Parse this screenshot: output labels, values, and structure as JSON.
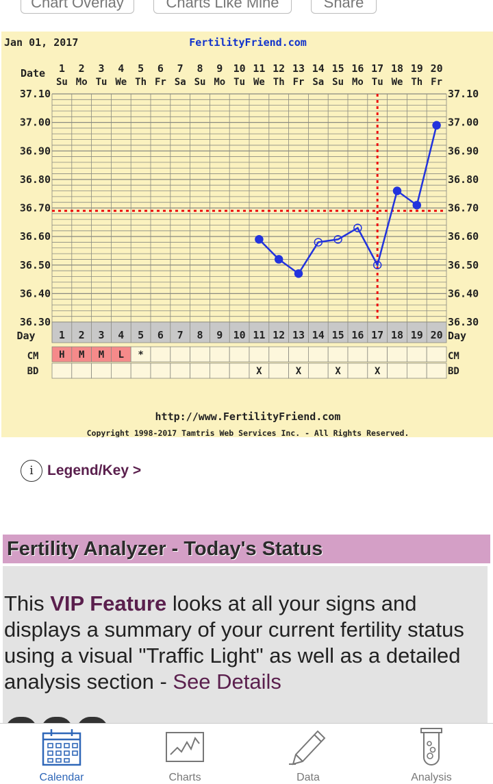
{
  "top_buttons": [
    "Chart Overlay",
    "Charts Like Mine",
    "Share"
  ],
  "chart": {
    "date_label": "Jan 01, 2017",
    "site_label": "FertilityFriend.com",
    "date_row_label": "Date",
    "day_row_label": "Day",
    "cm_label": "CM",
    "bd_label": "BD",
    "footer_url": "http://www.FertilityFriend.com",
    "copyright": "Copyright 1998-2017 Tamtris Web Services Inc. - All Rights Reserved."
  },
  "chart_data": {
    "type": "line",
    "x": [
      1,
      2,
      3,
      4,
      5,
      6,
      7,
      8,
      9,
      10,
      11,
      12,
      13,
      14,
      15,
      16,
      17,
      18,
      19,
      20
    ],
    "weekdays": [
      "Su",
      "Mo",
      "Tu",
      "We",
      "Th",
      "Fr",
      "Sa",
      "Su",
      "Mo",
      "Tu",
      "We",
      "Th",
      "Fr",
      "Sa",
      "Su",
      "Mo",
      "Tu",
      "We",
      "Th",
      "Fr"
    ],
    "ylim": [
      36.3,
      37.1
    ],
    "yticks": [
      "36.30",
      "36.40",
      "36.50",
      "36.60",
      "36.70",
      "36.80",
      "36.90",
      "37.00",
      "37.10"
    ],
    "series": [
      {
        "values": [
          null,
          null,
          null,
          null,
          null,
          null,
          null,
          null,
          null,
          null,
          36.59,
          36.52,
          36.47,
          36.58,
          36.59,
          36.63,
          36.5,
          36.76,
          36.71,
          36.99
        ],
        "open_points": [
          14,
          15,
          16,
          17
        ]
      }
    ],
    "coverline": 36.69,
    "ovulation_day": 17,
    "cm": [
      "H",
      "M",
      "M",
      "L",
      "*",
      "",
      "",
      "",
      "",
      "",
      "",
      "",
      "",
      "",
      "",
      "",
      "",
      "",
      "",
      ""
    ],
    "bd": [
      "",
      "",
      "",
      "",
      "",
      "",
      "",
      "",
      "",
      "",
      "X",
      "",
      "X",
      "",
      "X",
      "",
      "X",
      "",
      "",
      ""
    ],
    "colors": {
      "background": "#fbf2bf",
      "line": "#2233dd",
      "coverline": "#ee1111",
      "cm_fill": "#f58a8a",
      "day_strip": "#c8c8c8"
    }
  },
  "legend": {
    "icon": "i",
    "label": "Legend/Key >"
  },
  "analyzer": {
    "title": "Fertility Analyzer - Today's Status",
    "text_before": "This ",
    "vip": "VIP Feature",
    "text_after": " looks at all your signs and displays a summary of your current fertility status using a visual \"Traffic Light\" as well as a detailed analysis section - ",
    "link": "See Details"
  },
  "tabbar": [
    {
      "label": "Calendar",
      "icon": "calendar-icon",
      "active": true
    },
    {
      "label": "Charts",
      "icon": "chart-icon",
      "active": false
    },
    {
      "label": "Data",
      "icon": "pencil-icon",
      "active": false
    },
    {
      "label": "Analysis",
      "icon": "test-tube-icon",
      "active": false
    }
  ]
}
